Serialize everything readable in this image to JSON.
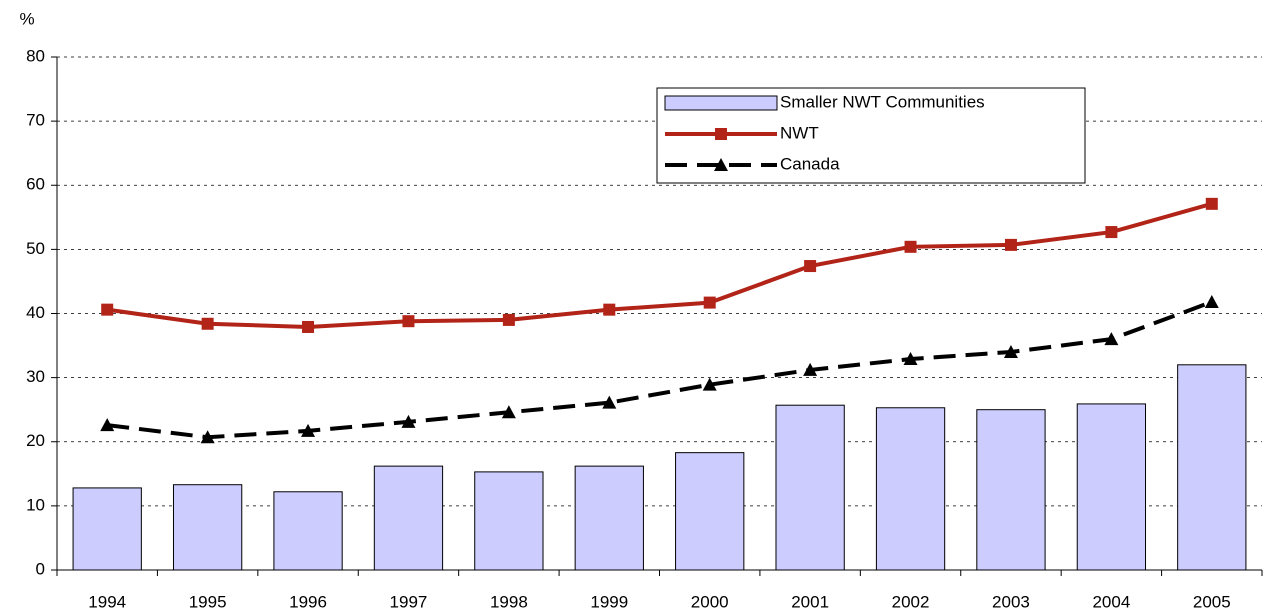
{
  "chart_data": {
    "type": "bar",
    "y_label": "%",
    "categories": [
      "1994",
      "1995",
      "1996",
      "1997",
      "1998",
      "1999",
      "2000",
      "2001",
      "2002",
      "2003",
      "2004",
      "2005"
    ],
    "series": [
      {
        "name": "Smaller NWT Communities",
        "type": "bar",
        "color": "#ccccff",
        "values": [
          12.8,
          13.3,
          12.2,
          16.2,
          15.3,
          16.2,
          18.3,
          25.7,
          25.3,
          25.0,
          25.9,
          32.0
        ]
      },
      {
        "name": "NWT",
        "type": "line",
        "color": "#b22418",
        "marker": "square",
        "values": [
          40.6,
          38.4,
          37.9,
          38.8,
          39.0,
          40.6,
          41.7,
          47.4,
          50.4,
          50.7,
          52.7,
          57.1
        ]
      },
      {
        "name": "Canada",
        "type": "line",
        "color": "#000000",
        "marker": "triangle",
        "dashed": true,
        "values": [
          22.6,
          20.7,
          21.7,
          23.1,
          24.6,
          26.1,
          28.9,
          31.2,
          32.9,
          34.0,
          36.0,
          41.8
        ]
      }
    ],
    "ylim": [
      0,
      80
    ],
    "yticks": [
      0,
      10,
      20,
      30,
      40,
      50,
      60,
      70,
      80
    ],
    "grid": true,
    "legend": "upper right"
  }
}
